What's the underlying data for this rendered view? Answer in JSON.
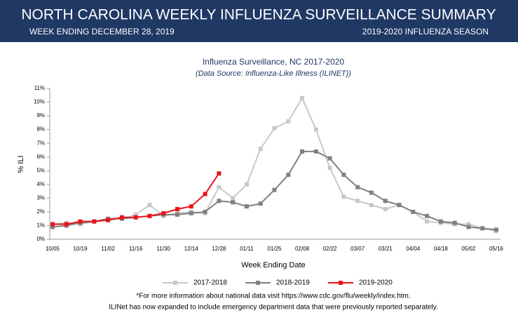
{
  "header": {
    "title": "NORTH CAROLINA WEEKLY INFLUENZA SURVEILLANCE SUMMARY",
    "week": "WEEK ENDING DECEMBER 28, 2019",
    "season": "2019-2020 INFLUENZA SEASON"
  },
  "chart_data": {
    "type": "line",
    "title": "Influenza Surveillance, NC 2017-2020",
    "subtitle": "(Data Source: Influenza-Like Illness (ILINET))",
    "x_label": "Week Ending Date",
    "y_label": "% ILI",
    "categories": [
      "10/05",
      null,
      "10/19",
      null,
      "11/02",
      null,
      "11/16",
      null,
      "11/30",
      null,
      "12/14",
      null,
      "12/28",
      null,
      "01/11",
      null,
      "01/25",
      null,
      "02/08",
      null,
      "02/22",
      null,
      "03/07",
      null,
      "03/21",
      null,
      "04/04",
      null,
      "04/18",
      null,
      "05/02",
      null,
      "05/16"
    ],
    "series": [
      {
        "name": "2017-2018",
        "color": "#c8c8c8",
        "values": [
          1.1,
          1.2,
          1.1,
          1.3,
          1.4,
          1.5,
          1.8,
          2.5,
          1.7,
          1.9,
          2.0,
          1.9,
          3.8,
          3.0,
          4.0,
          6.6,
          8.1,
          8.6,
          10.3,
          8.0,
          5.2,
          3.1,
          2.8,
          2.5,
          2.2,
          2.5,
          2.0,
          1.3,
          1.2,
          1.1,
          1.1,
          0.8,
          0.6
        ]
      },
      {
        "name": "2018-2019",
        "color": "#808080",
        "values": [
          0.9,
          1.0,
          1.2,
          1.3,
          1.5,
          1.5,
          1.6,
          1.7,
          1.8,
          1.8,
          1.9,
          2.0,
          2.8,
          2.7,
          2.4,
          2.6,
          3.6,
          4.7,
          6.4,
          6.4,
          5.9,
          4.7,
          3.8,
          3.4,
          2.8,
          2.5,
          2.0,
          1.7,
          1.3,
          1.2,
          0.9,
          0.8,
          0.7
        ]
      },
      {
        "name": "2019-2020",
        "color": "#e8141b",
        "values": [
          1.1,
          1.1,
          1.3,
          1.3,
          1.4,
          1.6,
          1.6,
          1.7,
          1.9,
          2.2,
          2.4,
          3.3,
          4.8,
          null,
          null,
          null,
          null,
          null,
          null,
          null,
          null,
          null,
          null,
          null,
          null,
          null,
          null,
          null,
          null,
          null,
          null,
          null,
          null
        ]
      }
    ],
    "ylim": [
      0,
      11
    ],
    "yticks": [
      {
        "value": 0,
        "label": "0%"
      },
      {
        "value": 1,
        "label": "1%"
      },
      {
        "value": 2,
        "label": "2%"
      },
      {
        "value": 3,
        "label": "3%"
      },
      {
        "value": 4,
        "label": "4%"
      },
      {
        "value": 5,
        "label": "5%"
      },
      {
        "value": 6,
        "label": "6%"
      },
      {
        "value": 7,
        "label": "7%"
      },
      {
        "value": 8,
        "label": "8%"
      },
      {
        "value": 9,
        "label": "9%"
      },
      {
        "value": 10,
        "label": "10%"
      },
      {
        "value": 11,
        "label": "11%"
      }
    ],
    "legend": "bottom",
    "notes": [
      "*For more information about national data visit https://www.cdc.gov/flu/weekly/index.htm.",
      "ILINet has now expanded to include emergency department data that were previously reported separately."
    ]
  }
}
